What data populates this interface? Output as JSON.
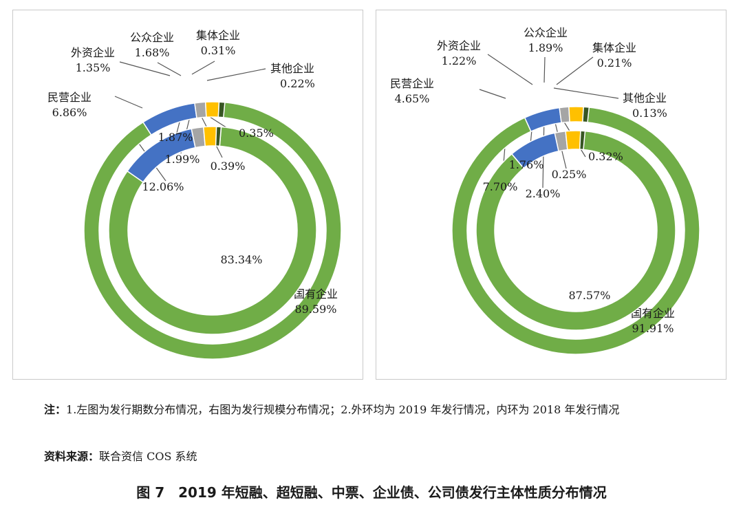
{
  "chart_data": [
    {
      "type": "donut",
      "title": "",
      "rings": [
        {
          "name": "2019",
          "position": "outer",
          "slices": [
            {
              "label": "其他企业",
              "value": 0.22,
              "value_text": "0.22%"
            },
            {
              "label": "国有企业",
              "value": 89.59,
              "value_text": "89.59%"
            },
            {
              "label": "民营企业",
              "value": 6.86,
              "value_text": "6.86%"
            },
            {
              "label": "外资企业",
              "value": 1.35,
              "value_text": "1.35%"
            },
            {
              "label": "公众企业",
              "value": 1.68,
              "value_text": "1.68%"
            },
            {
              "label": "集体企业",
              "value": 0.31,
              "value_text": "0.31%"
            }
          ]
        },
        {
          "name": "2018",
          "position": "inner",
          "slices": [
            {
              "label": "其他企业",
              "value": 0.35,
              "value_text": "0.35%"
            },
            {
              "label": "国有企业",
              "value": 83.34,
              "value_text": "83.34%"
            },
            {
              "label": "民营企业",
              "value": 12.06,
              "value_text": "12.06%"
            },
            {
              "label": "外资企业",
              "value": 1.87,
              "value_text": "1.87%"
            },
            {
              "label": "公众企业",
              "value": 1.99,
              "value_text": "1.99%"
            },
            {
              "label": "集体企业",
              "value": 0.39,
              "value_text": "0.39%"
            }
          ]
        }
      ]
    },
    {
      "type": "donut",
      "title": "",
      "rings": [
        {
          "name": "2019",
          "position": "outer",
          "slices": [
            {
              "label": "其他企业",
              "value": 0.13,
              "value_text": "0.13%"
            },
            {
              "label": "国有企业",
              "value": 91.91,
              "value_text": "91.91%"
            },
            {
              "label": "民营企业",
              "value": 4.65,
              "value_text": "4.65%"
            },
            {
              "label": "外资企业",
              "value": 1.22,
              "value_text": "1.22%"
            },
            {
              "label": "公众企业",
              "value": 1.89,
              "value_text": "1.89%"
            },
            {
              "label": "集体企业",
              "value": 0.21,
              "value_text": "0.21%"
            }
          ]
        },
        {
          "name": "2018",
          "position": "inner",
          "slices": [
            {
              "label": "其他企业",
              "value": 0.32,
              "value_text": "0.32%"
            },
            {
              "label": "国有企业",
              "value": 87.57,
              "value_text": "87.57%"
            },
            {
              "label": "民营企业",
              "value": 7.7,
              "value_text": "7.70%"
            },
            {
              "label": "外资企业",
              "value": 1.76,
              "value_text": "1.76%"
            },
            {
              "label": "公众企业",
              "value": 2.4,
              "value_text": "2.40%"
            },
            {
              "label": "集体企业",
              "value": 0.25,
              "value_text": "0.25%"
            }
          ]
        }
      ]
    }
  ],
  "colors": {
    "国有企业": "#70ad47",
    "民营企业": "#4472c4",
    "外资企业": "#a5a5a5",
    "公众企业": "#ffc000",
    "集体企业": "#375623",
    "其他企业": "#70ad47"
  },
  "notes": {
    "line1_lead": "注：",
    "line1_text": "1.左图为发行期数分布情况，右图为发行规模分布情况；2.外环均为 2019 年发行情况，内环为 2018 年发行情况",
    "line2_lead": "资料来源：",
    "line2_text": "联合资信 COS 系统"
  },
  "caption": "图 7　2019 年短融、超短融、中票、企业债、公司债发行主体性质分布情况"
}
